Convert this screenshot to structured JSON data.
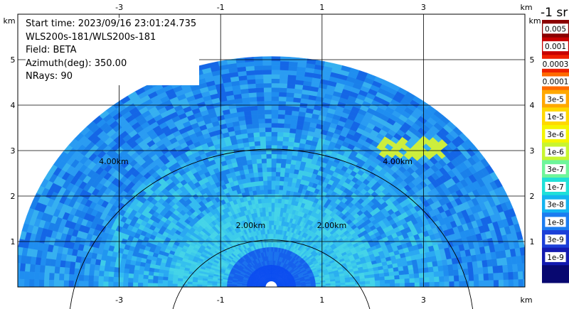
{
  "info": {
    "start_time": "Start time: 2023/09/16 23:01:24.735",
    "instrument": "WLS200s-181/WLS200s-181",
    "field": "Field: BETA",
    "azimuth": "Azimuth(deg): 350.00",
    "nrays": "NRays: 90"
  },
  "colorbar": {
    "title": "-1 sr",
    "labels": [
      "0.005",
      "0.001",
      "0.0003",
      "0.0001",
      "3e-5",
      "1e-5",
      "3e-6",
      "1e-6",
      "3e-7",
      "1e-7",
      "3e-8",
      "1e-8",
      "3e-9",
      "1e-9"
    ],
    "colors": [
      "#8b0000",
      "#c80000",
      "#ee2000",
      "#ff6a00",
      "#ffa800",
      "#ffd800",
      "#f5f500",
      "#c8f530",
      "#6ef59a",
      "#20e0d8",
      "#14b4f0",
      "#1c7cf0",
      "#1c40d8",
      "#121ab0",
      "#080870"
    ]
  },
  "chart_data": {
    "type": "heatmap",
    "title": "",
    "xlabel": "km",
    "ylabel": "km",
    "xlim": [
      -5.0,
      5.0
    ],
    "ylim": [
      0.0,
      6.0
    ],
    "x_ticks": [
      -3,
      -1,
      1,
      3
    ],
    "y_ticks": [
      1,
      2,
      3,
      4,
      5
    ],
    "range_rings_km": [
      2.0,
      4.0
    ],
    "ring_labels": [
      "2.00km",
      "2.00km",
      "4.00km",
      "4.00km"
    ],
    "max_range_km": 5.07,
    "scan": "RHI sector scan 0–180° elevation",
    "grid": true,
    "colors": {
      "far_field": "#1a80ea",
      "mid_field": "#1f9cf0",
      "near_field": "#30c8ec",
      "core": "#0a4cf0",
      "aerosol_layer": "#cdee3c"
    }
  }
}
